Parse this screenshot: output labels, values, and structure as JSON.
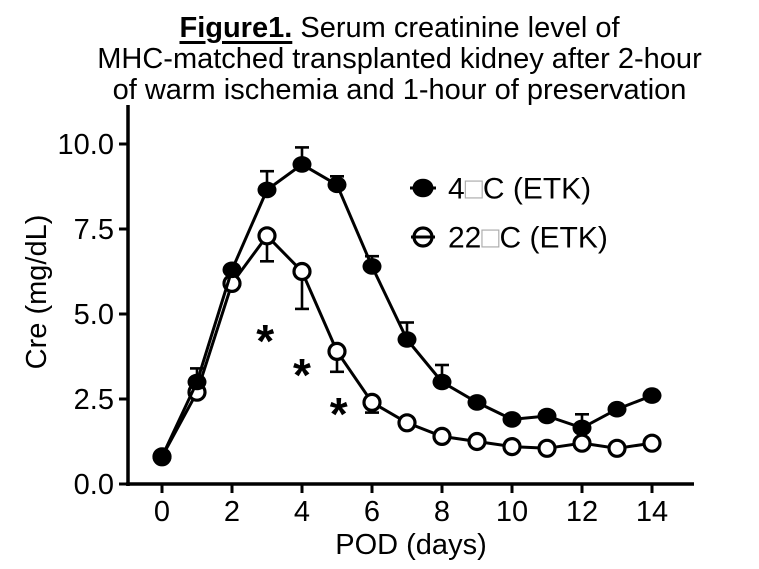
{
  "title": {
    "figure_label": "Figure1.",
    "line1_rest": " Serum creatinine level of",
    "line2": "MHC-matched transplanted kidney after 2-hour",
    "line3": "of warm ischemia and 1-hour of preservation"
  },
  "chart_data": {
    "type": "line",
    "x": [
      0,
      1,
      2,
      3,
      4,
      5,
      6,
      7,
      8,
      9,
      10,
      11,
      12,
      13,
      14
    ],
    "xlabel": "POD (days)",
    "ylabel": "Cre (mg/dL)",
    "xlim": [
      0,
      15
    ],
    "ylim": [
      0,
      10.75
    ],
    "xticks": [
      0,
      2,
      4,
      6,
      8,
      10,
      12,
      14
    ],
    "yticks": [
      0,
      2.5,
      5,
      7.5,
      10
    ],
    "ytick_labels": [
      "0.0",
      "2.5",
      "5.0",
      "7.5",
      "10.0"
    ],
    "grid": false,
    "legend_position": "upper-right-inside",
    "colors": {
      "foreground": "#000000",
      "background": "#ffffff",
      "missing_glyph_box": "#aaaaaa"
    },
    "series": [
      {
        "name": "4□C (ETK)",
        "name_parts": {
          "pre": "4",
          "box": "□",
          "post": "C (ETK)"
        },
        "marker": "filled-circle",
        "color": "#000000",
        "values": [
          0.8,
          3.0,
          6.3,
          8.65,
          9.4,
          8.8,
          6.4,
          4.25,
          3.0,
          2.4,
          1.9,
          2.0,
          1.65,
          2.2,
          2.6
        ],
        "err_up": [
          0,
          0.4,
          0,
          0.55,
          0.5,
          0.25,
          0.3,
          0.5,
          0.5,
          0,
          0,
          0,
          0.4,
          0,
          0
        ],
        "err_down": [
          0,
          0,
          0,
          0,
          0,
          0,
          0,
          0,
          0,
          0,
          0,
          0,
          0,
          0,
          0
        ]
      },
      {
        "name": "22□C (ETK)",
        "name_parts": {
          "pre": "22",
          "box": "□",
          "post": "C (ETK)"
        },
        "marker": "open-circle",
        "color": "#000000",
        "values": [
          0.8,
          2.7,
          5.9,
          7.3,
          6.25,
          3.9,
          2.4,
          1.8,
          1.4,
          1.25,
          1.1,
          1.05,
          1.2,
          1.05,
          1.2
        ],
        "err_up": [
          0,
          0,
          0,
          0,
          0,
          0,
          0,
          0,
          0,
          0,
          0,
          0,
          0,
          0,
          0
        ],
        "err_down": [
          0,
          0,
          0,
          0.75,
          1.1,
          0.6,
          0.3,
          0,
          0,
          0,
          0,
          0,
          0,
          0,
          0
        ]
      }
    ],
    "annotations": [
      {
        "symbol": "*",
        "x": 2.95,
        "y": 4.35
      },
      {
        "symbol": "*",
        "x": 4.0,
        "y": 3.35
      },
      {
        "symbol": "*",
        "x": 5.05,
        "y": 2.2
      }
    ]
  }
}
